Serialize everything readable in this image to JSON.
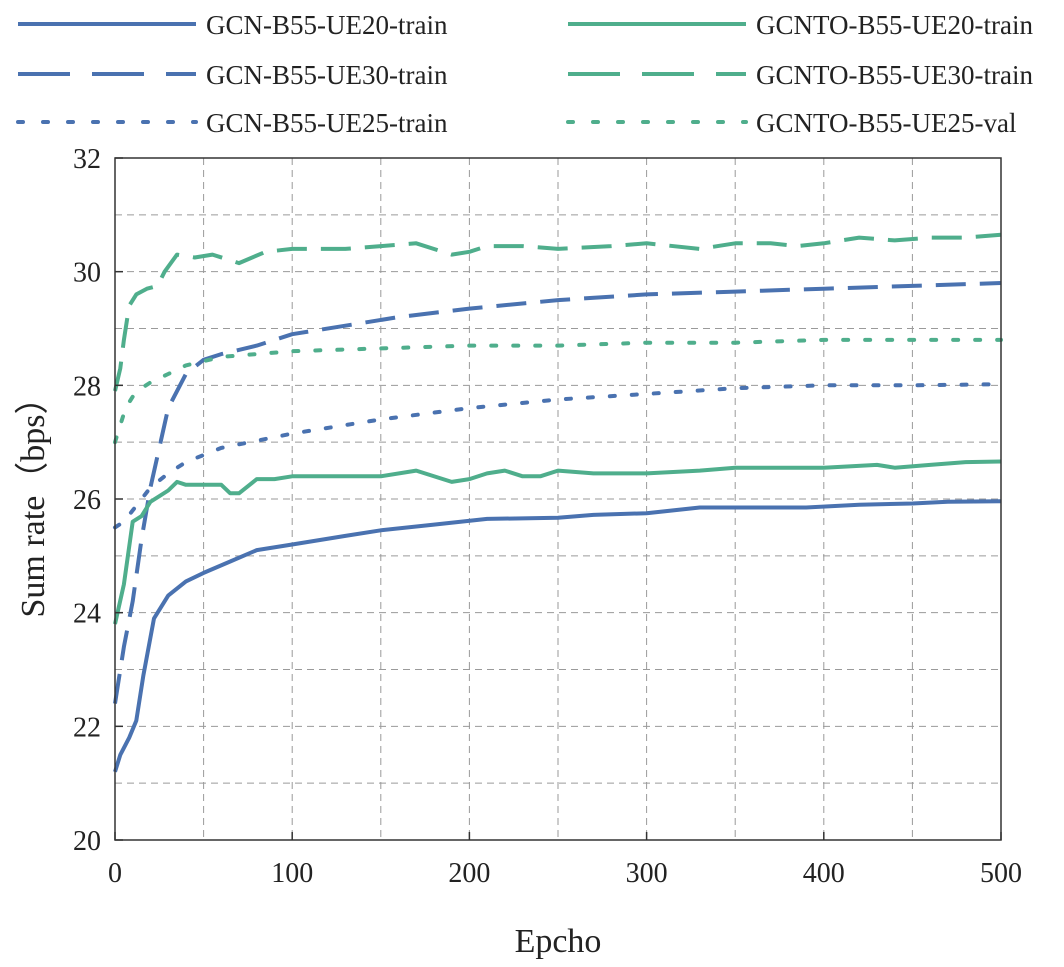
{
  "chart_data": {
    "type": "line",
    "title": "",
    "xlabel": "Epcho",
    "ylabel": "Sum rate（bps）",
    "xlim": [
      0,
      500
    ],
    "ylim": [
      20,
      32
    ],
    "xticks": [
      0,
      100,
      200,
      300,
      400,
      500
    ],
    "yticks": [
      20,
      22,
      24,
      26,
      28,
      30,
      32
    ],
    "grid": true,
    "grid_style": "dashed",
    "legend_position": "top, outside plot, 3 rows x 2 columns",
    "series": [
      {
        "name": "GCN-B55-UE20-train",
        "color": "#4a72b0",
        "style": "solid",
        "points": [
          [
            0,
            21.2
          ],
          [
            3,
            21.5
          ],
          [
            8,
            21.8
          ],
          [
            12,
            22.1
          ],
          [
            16,
            22.9
          ],
          [
            22,
            23.9
          ],
          [
            30,
            24.3
          ],
          [
            40,
            24.55
          ],
          [
            50,
            24.7
          ],
          [
            65,
            24.9
          ],
          [
            80,
            25.1
          ],
          [
            100,
            25.2
          ],
          [
            130,
            25.35
          ],
          [
            150,
            25.45
          ],
          [
            180,
            25.55
          ],
          [
            210,
            25.65
          ],
          [
            250,
            25.67
          ],
          [
            270,
            25.72
          ],
          [
            300,
            25.75
          ],
          [
            330,
            25.85
          ],
          [
            360,
            25.85
          ],
          [
            390,
            25.85
          ],
          [
            420,
            25.9
          ],
          [
            450,
            25.92
          ],
          [
            470,
            25.95
          ],
          [
            500,
            25.96
          ]
        ]
      },
      {
        "name": "GCN-B55-UE30-train",
        "color": "#4a72b0",
        "style": "dashed",
        "points": [
          [
            0,
            22.4
          ],
          [
            5,
            23.4
          ],
          [
            10,
            24.2
          ],
          [
            15,
            25.3
          ],
          [
            20,
            26.2
          ],
          [
            25,
            26.9
          ],
          [
            30,
            27.6
          ],
          [
            40,
            28.2
          ],
          [
            50,
            28.45
          ],
          [
            60,
            28.55
          ],
          [
            80,
            28.7
          ],
          [
            100,
            28.9
          ],
          [
            130,
            29.05
          ],
          [
            160,
            29.2
          ],
          [
            200,
            29.35
          ],
          [
            250,
            29.5
          ],
          [
            300,
            29.6
          ],
          [
            350,
            29.65
          ],
          [
            400,
            29.7
          ],
          [
            450,
            29.75
          ],
          [
            500,
            29.8
          ]
        ]
      },
      {
        "name": "GCN-B55-UE25-train",
        "color": "#4a72b0",
        "style": "dotted",
        "points": [
          [
            0,
            25.5
          ],
          [
            5,
            25.6
          ],
          [
            10,
            25.8
          ],
          [
            15,
            26.0
          ],
          [
            20,
            26.2
          ],
          [
            30,
            26.45
          ],
          [
            40,
            26.65
          ],
          [
            60,
            26.9
          ],
          [
            100,
            27.15
          ],
          [
            150,
            27.4
          ],
          [
            200,
            27.6
          ],
          [
            250,
            27.75
          ],
          [
            300,
            27.85
          ],
          [
            350,
            27.95
          ],
          [
            400,
            28.0
          ],
          [
            450,
            28.0
          ],
          [
            500,
            28.02
          ]
        ]
      },
      {
        "name": "GCNTO-B55-UE20-train",
        "color": "#4fae8c",
        "style": "solid",
        "points": [
          [
            0,
            23.8
          ],
          [
            5,
            24.5
          ],
          [
            10,
            25.6
          ],
          [
            15,
            25.7
          ],
          [
            20,
            25.95
          ],
          [
            25,
            26.05
          ],
          [
            30,
            26.15
          ],
          [
            35,
            26.3
          ],
          [
            40,
            26.25
          ],
          [
            50,
            26.25
          ],
          [
            60,
            26.25
          ],
          [
            65,
            26.1
          ],
          [
            70,
            26.1
          ],
          [
            80,
            26.35
          ],
          [
            90,
            26.35
          ],
          [
            100,
            26.4
          ],
          [
            130,
            26.4
          ],
          [
            150,
            26.4
          ],
          [
            170,
            26.5
          ],
          [
            190,
            26.3
          ],
          [
            200,
            26.35
          ],
          [
            210,
            26.45
          ],
          [
            220,
            26.5
          ],
          [
            230,
            26.4
          ],
          [
            240,
            26.4
          ],
          [
            250,
            26.5
          ],
          [
            270,
            26.45
          ],
          [
            300,
            26.45
          ],
          [
            330,
            26.5
          ],
          [
            350,
            26.55
          ],
          [
            380,
            26.55
          ],
          [
            400,
            26.55
          ],
          [
            430,
            26.6
          ],
          [
            440,
            26.55
          ],
          [
            460,
            26.6
          ],
          [
            480,
            26.65
          ],
          [
            500,
            26.66
          ]
        ]
      },
      {
        "name": "GCNTO-B55-UE30-train",
        "color": "#4fae8c",
        "style": "dashed",
        "points": [
          [
            0,
            27.9
          ],
          [
            3,
            28.3
          ],
          [
            5,
            28.8
          ],
          [
            8,
            29.4
          ],
          [
            12,
            29.6
          ],
          [
            18,
            29.7
          ],
          [
            24,
            29.75
          ],
          [
            28,
            30.0
          ],
          [
            35,
            30.3
          ],
          [
            45,
            30.25
          ],
          [
            55,
            30.3
          ],
          [
            70,
            30.15
          ],
          [
            85,
            30.35
          ],
          [
            100,
            30.4
          ],
          [
            130,
            30.4
          ],
          [
            150,
            30.45
          ],
          [
            170,
            30.5
          ],
          [
            190,
            30.3
          ],
          [
            200,
            30.35
          ],
          [
            210,
            30.45
          ],
          [
            230,
            30.45
          ],
          [
            250,
            30.4
          ],
          [
            280,
            30.45
          ],
          [
            300,
            30.5
          ],
          [
            330,
            30.4
          ],
          [
            350,
            30.5
          ],
          [
            370,
            30.5
          ],
          [
            385,
            30.45
          ],
          [
            400,
            30.5
          ],
          [
            420,
            30.6
          ],
          [
            440,
            30.55
          ],
          [
            460,
            30.6
          ],
          [
            480,
            30.6
          ],
          [
            500,
            30.65
          ]
        ]
      },
      {
        "name": "GCNTO-B55-UE25-val",
        "color": "#4fae8c",
        "style": "dotted",
        "points": [
          [
            0,
            27.0
          ],
          [
            3,
            27.3
          ],
          [
            6,
            27.6
          ],
          [
            10,
            27.8
          ],
          [
            15,
            27.95
          ],
          [
            20,
            28.05
          ],
          [
            30,
            28.2
          ],
          [
            40,
            28.35
          ],
          [
            60,
            28.5
          ],
          [
            100,
            28.6
          ],
          [
            150,
            28.65
          ],
          [
            200,
            28.7
          ],
          [
            250,
            28.7
          ],
          [
            300,
            28.75
          ],
          [
            350,
            28.75
          ],
          [
            400,
            28.8
          ],
          [
            450,
            28.8
          ],
          [
            500,
            28.8
          ]
        ]
      }
    ]
  }
}
